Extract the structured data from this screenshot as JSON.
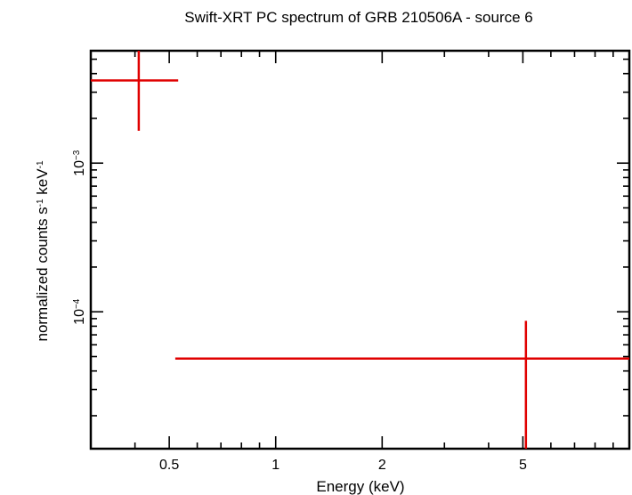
{
  "chart_data": {
    "type": "scatter",
    "title": "Swift-XRT PC spectrum of GRB 210506A - source 6",
    "xlabel": "Energy (keV)",
    "ylabel_main": "normalized counts s",
    "ylabel_mid": " keV",
    "ylabel_sup": "-1",
    "x_scale": "log",
    "y_scale": "log",
    "xlim": [
      0.3,
      10.0
    ],
    "ylim": [
      1.2e-05,
      0.0057
    ],
    "x_ticks": [
      {
        "value": 0.5,
        "label": "0.5"
      },
      {
        "value": 1,
        "label": "1"
      },
      {
        "value": 2,
        "label": "2"
      },
      {
        "value": 5,
        "label": "5"
      }
    ],
    "y_ticks": [
      {
        "value": 0.001,
        "base": "10",
        "exp": "-3"
      },
      {
        "value": 0.0001,
        "base": "10",
        "exp": "-4"
      }
    ],
    "grid": false,
    "color": "#e00000",
    "series": [
      {
        "points": [
          {
            "x": 0.41,
            "xlo": 0.3,
            "xhi": 0.53,
            "y": 0.0036,
            "ylo": 0.00165,
            "yhi": 0.0057
          },
          {
            "x": 5.1,
            "xlo": 0.52,
            "xhi": 10.0,
            "y": 4.85e-05,
            "ylo": 1.2e-05,
            "yhi": 8.7e-05
          }
        ]
      }
    ]
  }
}
